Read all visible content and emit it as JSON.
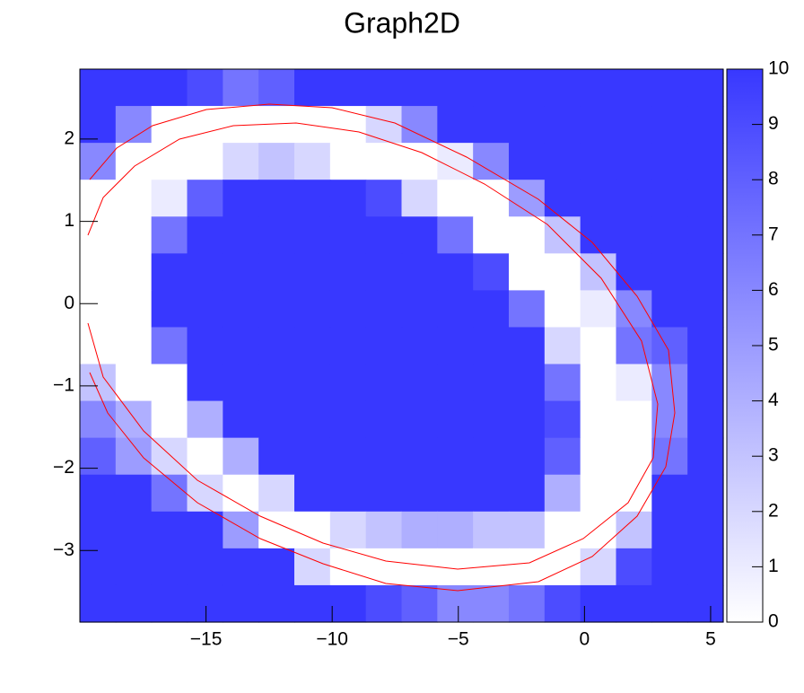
{
  "chart_data": {
    "type": "heatmap",
    "title": "Graph2D",
    "xlim": [
      -20,
      5.5
    ],
    "ylim": [
      -3.87,
      2.85
    ],
    "xticks": [
      {
        "value": -15,
        "label": "−15"
      },
      {
        "value": -10,
        "label": "−10"
      },
      {
        "value": -5,
        "label": "−5"
      },
      0,
      5
    ],
    "yticks": [
      {
        "value": -3,
        "label": "−3"
      },
      {
        "value": -2,
        "label": "−2"
      },
      {
        "value": -1,
        "label": "−1"
      },
      0,
      1,
      2
    ],
    "zlim": [
      0,
      10
    ],
    "zticks": [
      0,
      1,
      2,
      3,
      4,
      5,
      6,
      7,
      8,
      9,
      10
    ],
    "colorscale": [
      "#ffffff",
      "#3838ff"
    ],
    "contour_color": "#ff0000",
    "z": [
      [
        10,
        10,
        10,
        9,
        7,
        8,
        10,
        10,
        10,
        10,
        10,
        10,
        10,
        10,
        10,
        10,
        10,
        10
      ],
      [
        10,
        6,
        0,
        0,
        0,
        0,
        0,
        0,
        2,
        6,
        10,
        10,
        10,
        10,
        10,
        10,
        10,
        10
      ],
      [
        6,
        0,
        0,
        0,
        2,
        3,
        2,
        0,
        0,
        0,
        1,
        6,
        10,
        10,
        10,
        10,
        10,
        10
      ],
      [
        0,
        0,
        1,
        8,
        10,
        10,
        10,
        10,
        9,
        2,
        0,
        0,
        5,
        10,
        10,
        10,
        10,
        10
      ],
      [
        0,
        0,
        7,
        10,
        10,
        10,
        10,
        10,
        10,
        10,
        7,
        0,
        0,
        3,
        10,
        10,
        10,
        10
      ],
      [
        0,
        0,
        10,
        10,
        10,
        10,
        10,
        10,
        10,
        10,
        10,
        9,
        0,
        0,
        3,
        10,
        10,
        10
      ],
      [
        0,
        0,
        10,
        10,
        10,
        10,
        10,
        10,
        10,
        10,
        10,
        10,
        7,
        0,
        1,
        6,
        10,
        10
      ],
      [
        0,
        0,
        7,
        10,
        10,
        10,
        10,
        10,
        10,
        10,
        10,
        10,
        10,
        2,
        0,
        7,
        8,
        10
      ],
      [
        3,
        0,
        0,
        10,
        10,
        10,
        10,
        10,
        10,
        10,
        10,
        10,
        10,
        7,
        0,
        1,
        6,
        10
      ],
      [
        6,
        4,
        0,
        4,
        10,
        10,
        10,
        10,
        10,
        10,
        10,
        10,
        10,
        9,
        0,
        0,
        6,
        10
      ],
      [
        8,
        5,
        2,
        0,
        4,
        10,
        10,
        10,
        10,
        10,
        10,
        10,
        10,
        8,
        0,
        0,
        7,
        10
      ],
      [
        10,
        10,
        7,
        2,
        0,
        2,
        10,
        10,
        10,
        10,
        10,
        10,
        10,
        4,
        0,
        0,
        10,
        10
      ],
      [
        10,
        10,
        10,
        10,
        5,
        0,
        0,
        2,
        3,
        4,
        4,
        3,
        3,
        0,
        0,
        3,
        10,
        10
      ],
      [
        10,
        10,
        10,
        10,
        10,
        10,
        2,
        0,
        0,
        0,
        0,
        0,
        0,
        0,
        2,
        9,
        10,
        10
      ],
      [
        10,
        10,
        10,
        10,
        10,
        10,
        10,
        10,
        9,
        8,
        6,
        6,
        7,
        9,
        10,
        10,
        10,
        10
      ]
    ]
  }
}
